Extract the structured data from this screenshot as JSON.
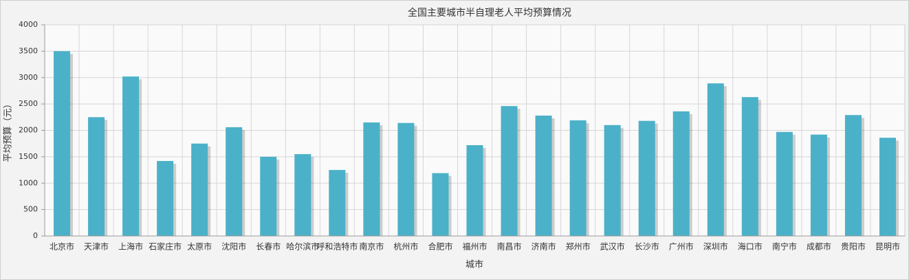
{
  "chart_data": {
    "type": "bar",
    "title": "全国主要城市半自理老人平均预算情况",
    "x_label": "城市",
    "y_label": "平均预算（元）",
    "categories": [
      "北京市",
      "天津市",
      "上海市",
      "石家庄市",
      "太原市",
      "沈阳市",
      "长春市",
      "哈尔滨市",
      "呼和浩特市",
      "南京市",
      "杭州市",
      "合肥市",
      "福州市",
      "南昌市",
      "济南市",
      "郑州市",
      "武汉市",
      "长沙市",
      "广州市",
      "深圳市",
      "海口市",
      "南宁市",
      "成都市",
      "贵阳市",
      "昆明市"
    ],
    "values": [
      3500,
      2250,
      3020,
      1420,
      1750,
      2060,
      1500,
      1550,
      1250,
      2150,
      2140,
      1190,
      1720,
      2460,
      2280,
      2190,
      2100,
      2180,
      2360,
      2890,
      2630,
      1970,
      1920,
      2290,
      1860
    ],
    "color": "#4bb1c8",
    "ylim": [
      0,
      4000
    ],
    "yticks": [
      0,
      500,
      1000,
      1500,
      2000,
      2500,
      3000,
      3500,
      4000
    ],
    "grid": true
  }
}
